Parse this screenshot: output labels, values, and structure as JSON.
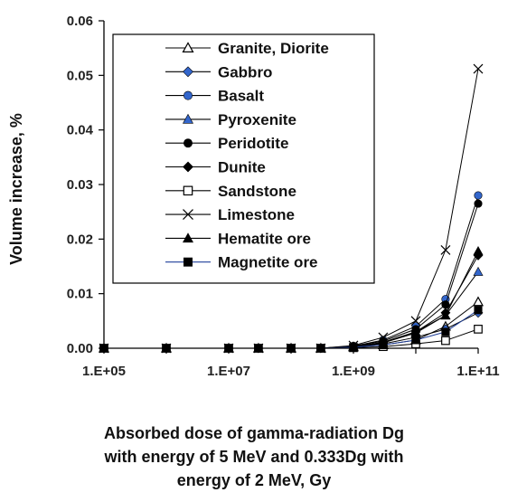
{
  "chart_data": {
    "type": "line",
    "x_scale": "log",
    "xlim": [
      100000,
      100000000000
    ],
    "ylim": [
      0,
      0.06
    ],
    "x_ticks": [
      "1.E+05",
      "1.E+07",
      "1.E+09",
      "1.E+11"
    ],
    "y_ticks": [
      "0.00",
      "0.01",
      "0.02",
      "0.03",
      "0.04",
      "0.05",
      "0.06"
    ],
    "ylabel": "Volume increase, %",
    "xlabel_lines": [
      "Absorbed dose of gamma-radiation Dg",
      "with energy of 5 MeV and 0.333Dg with",
      "energy of 2 MeV, Gy"
    ],
    "legend_position": "top-left inside",
    "x": [
      100000,
      1000000,
      10000000,
      30000000,
      100000000,
      300000000,
      1000000000,
      3000000000,
      10000000000,
      30000000000,
      100000000000
    ],
    "series": [
      {
        "name": "Granite, Diorite",
        "marker": "triangle-open",
        "color": "#000000",
        "line": "#000000",
        "values": [
          0,
          0,
          0,
          0,
          0,
          0,
          0.0002,
          0.0006,
          0.0015,
          0.004,
          0.0085
        ]
      },
      {
        "name": "Gabbro",
        "marker": "diamond",
        "color": "#3366cc",
        "line": "#000000",
        "values": [
          0,
          0,
          0,
          0,
          0,
          0,
          0.0003,
          0.0008,
          0.002,
          0.0035,
          0.0065
        ]
      },
      {
        "name": "Basalt",
        "marker": "circle",
        "color": "#3366cc",
        "line": "#000000",
        "values": [
          0,
          0,
          0,
          0,
          0,
          0,
          0.0004,
          0.0015,
          0.004,
          0.009,
          0.028
        ]
      },
      {
        "name": "Pyroxenite",
        "marker": "triangle",
        "color": "#3366cc",
        "line": "#000000",
        "values": [
          0,
          0,
          0,
          0,
          0,
          0,
          0.0003,
          0.001,
          0.003,
          0.006,
          0.014
        ]
      },
      {
        "name": "Peridotite",
        "marker": "circle",
        "color": "#000000",
        "line": "#000000",
        "values": [
          0,
          0,
          0,
          0,
          0,
          0,
          0.0004,
          0.0013,
          0.0035,
          0.008,
          0.0265
        ]
      },
      {
        "name": "Dunite",
        "marker": "diamond",
        "color": "#000000",
        "line": "#000000",
        "values": [
          0,
          0,
          0,
          0,
          0,
          0,
          0.0003,
          0.0011,
          0.003,
          0.0065,
          0.017
        ]
      },
      {
        "name": "Sandstone",
        "marker": "square-open",
        "color": "#000000",
        "line": "#000000",
        "values": [
          0,
          0,
          0,
          0,
          0,
          0,
          0.0001,
          0.0003,
          0.0008,
          0.0014,
          0.0035
        ]
      },
      {
        "name": "Limestone",
        "marker": "x",
        "color": "#000000",
        "line": "#000000",
        "values": [
          0,
          0,
          0,
          0,
          0,
          0,
          0.0005,
          0.002,
          0.005,
          0.018,
          0.0512
        ]
      },
      {
        "name": "Hematite ore",
        "marker": "triangle",
        "color": "#000000",
        "line": "#000000",
        "values": [
          0,
          0,
          0,
          0,
          0,
          0,
          0.0003,
          0.001,
          0.0028,
          0.006,
          0.0178
        ]
      },
      {
        "name": "Magnetite ore",
        "marker": "square",
        "color": "#000000",
        "line": "#1f3f99",
        "values": [
          0,
          0,
          0,
          0,
          0,
          0,
          0.0002,
          0.0006,
          0.0015,
          0.003,
          0.007
        ]
      }
    ]
  }
}
